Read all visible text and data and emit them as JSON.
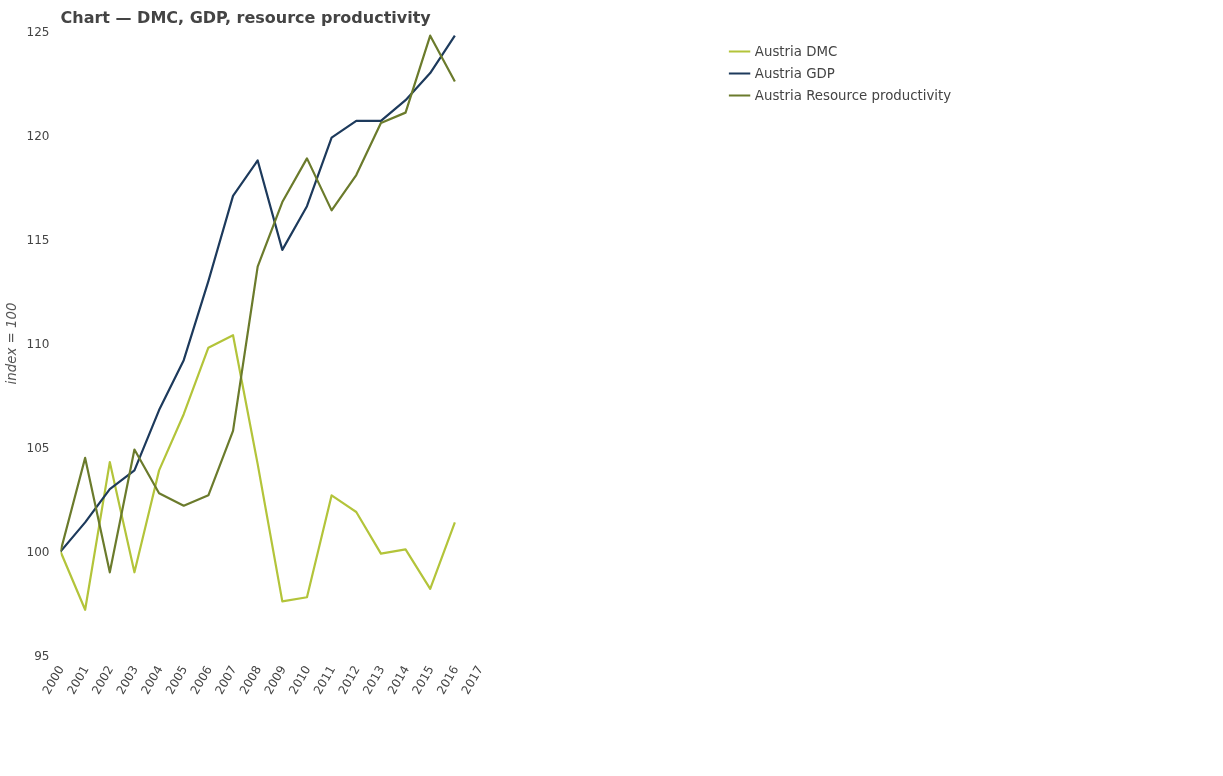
{
  "chart_data": {
    "type": "line",
    "title": "Chart — DMC, GDP, resource productivity",
    "ylabel": "index = 100",
    "x": [
      2000,
      2001,
      2002,
      2003,
      2004,
      2005,
      2006,
      2007,
      2008,
      2009,
      2010,
      2011,
      2012,
      2013,
      2014,
      2015,
      2016
    ],
    "series": [
      {
        "name": "Austria DMC",
        "color": "#b3c43a",
        "values": [
          100,
          97.2,
          104.3,
          99.0,
          103.9,
          106.6,
          109.8,
          110.4,
          104.2,
          97.6,
          97.8,
          102.7,
          101.9,
          99.9,
          100.1,
          98.2,
          101.4
        ]
      },
      {
        "name": "Austria GDP",
        "color": "#1d3a5c",
        "values": [
          100,
          101.4,
          103.0,
          103.9,
          106.8,
          109.2,
          113.0,
          117.1,
          118.8,
          114.5,
          116.6,
          119.9,
          120.7,
          120.7,
          121.7,
          123.0,
          124.8
        ]
      },
      {
        "name": "Austria Resource productivity",
        "color": "#6b7b2c",
        "values": [
          100,
          104.5,
          99.0,
          104.9,
          102.8,
          102.2,
          102.7,
          105.8,
          113.7,
          116.8,
          118.9,
          116.4,
          118.1,
          120.6,
          121.1,
          124.8,
          122.6
        ]
      }
    ],
    "xlim": [
      2000,
      2017
    ],
    "xticks": [
      2000,
      2001,
      2002,
      2003,
      2004,
      2005,
      2006,
      2007,
      2008,
      2009,
      2010,
      2011,
      2012,
      2013,
      2014,
      2015,
      2016,
      2017
    ],
    "ylim": [
      95,
      125
    ],
    "yticks": [
      95,
      100,
      105,
      110,
      115,
      120,
      125
    ],
    "grid": false,
    "legend": "top right",
    "line_style": "solid",
    "marker": "none"
  }
}
